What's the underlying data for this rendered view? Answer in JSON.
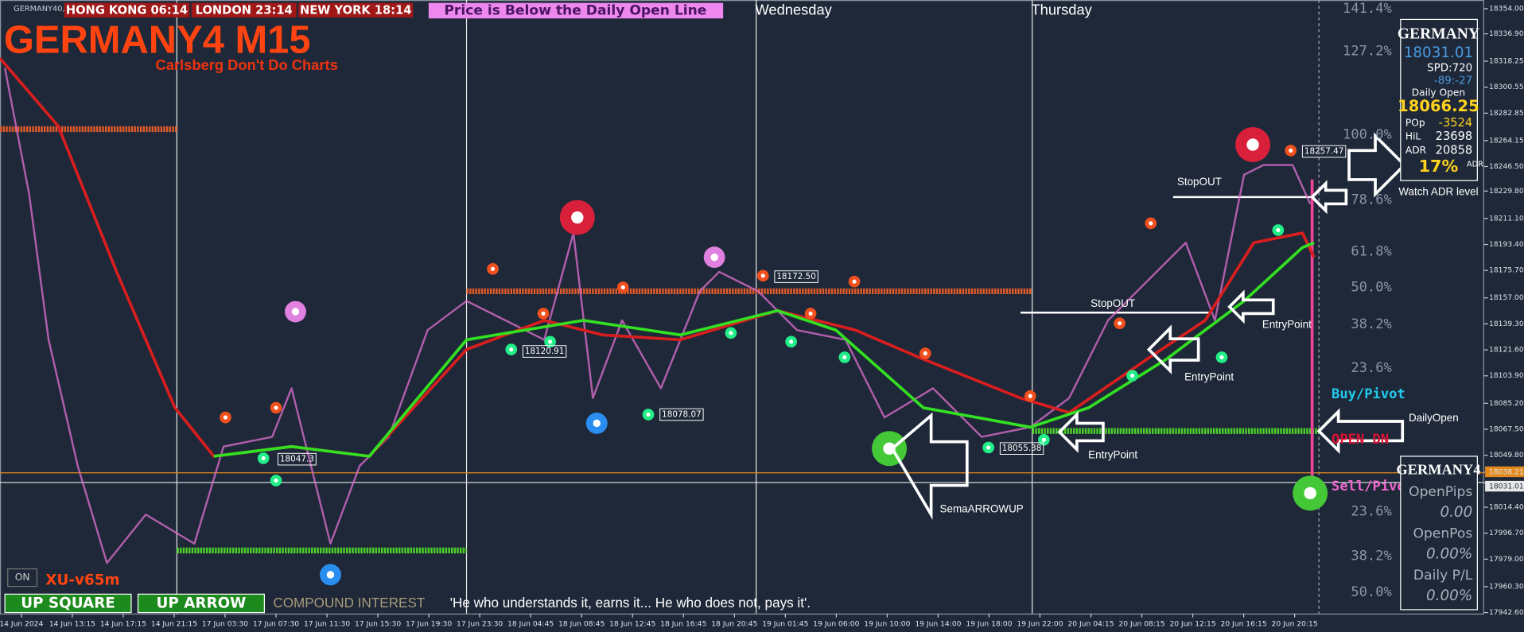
{
  "header": {
    "symbol": "GERMANY40,M15",
    "clocks": [
      "HONG KONG 06:14",
      "LONDON  23:14",
      "NEW YORK 18:14"
    ],
    "alert": "Price is Below the Daily Open Line",
    "days": [
      "Wednesday",
      "Thursday"
    ]
  },
  "title": "GERMANY4 M15",
  "subtitle": "Carlsberg Don't Do Charts",
  "levels": [
    "141.4%",
    "127.2%",
    "100.0%",
    "78.6%",
    "61.8%",
    "50.0%",
    "38.2%",
    "23.6%",
    "Buy/Pivot",
    "OPEN DN",
    "Sell/Pivo",
    "23.6%",
    "38.2%",
    "50.0%"
  ],
  "info_panel": {
    "symbol": "GERMANY",
    "price": "18031.01",
    "spread": "SPD:720",
    "swap": "-89:-27",
    "daily_open_label": "Daily Open",
    "daily_open": "18066.25",
    "rows": [
      [
        "POp",
        "-3524"
      ],
      [
        "HiL",
        "23698"
      ],
      [
        "ADR",
        "20858"
      ]
    ],
    "adr_percent": "17%",
    "adr_label": "ADR"
  },
  "stats_panel": {
    "symbol": "GERMANY4",
    "rows": [
      [
        "OpenPips",
        "0.00"
      ],
      [
        "OpenPos",
        "0.00%"
      ],
      [
        "Daily P/L",
        "0.00%"
      ]
    ]
  },
  "price_axis": [
    "18354.00",
    "18336.90",
    "18318.25",
    "18300.55",
    "18282.85",
    "18264.15",
    "18246.50",
    "18229.80",
    "18211.10",
    "18193.40",
    "18175.70",
    "18157.00",
    "18139.30",
    "18121.60",
    "18103.90",
    "18085.20",
    "18067.50",
    "18049.80",
    "18038.21",
    "18031.01",
    "18014.40",
    "17996.70",
    "17979.00",
    "17960.30",
    "17942.60"
  ],
  "time_axis": [
    "14 Jun 2024",
    "14 Jun 13:15",
    "14 Jun 17:15",
    "14 Jun 21:15",
    "17 Jun 03:30",
    "17 Jun 07:30",
    "17 Jun 11:30",
    "17 Jun 15:30",
    "17 Jun 19:30",
    "17 Jun 23:30",
    "18 Jun 04:45",
    "18 Jun 08:45",
    "18 Jun 12:45",
    "18 Jun 16:45",
    "18 Jun 20:45",
    "19 Jun 01:45",
    "19 Jun 06:00",
    "19 Jun 10:00",
    "19 Jun 14:00",
    "19 Jun 18:00",
    "19 Jun 22:00",
    "20 Jun 04:15",
    "20 Jun 08:15",
    "20 Jun 12:15",
    "20 Jun 16:15",
    "20 Jun 20:15"
  ],
  "annotations": [
    "StopOUT",
    "StopOUT",
    "EntryPoint",
    "EntryPoint",
    "EntryPoint",
    "Watch ADR level",
    "DailyOpen",
    "SemaARROWUP"
  ],
  "price_tags": [
    "18257.47",
    "18172.50",
    "18120.91",
    "18078.07",
    "18047.3",
    "18055.38"
  ],
  "footer": {
    "toggle": "ON",
    "version": "XU-v65m",
    "buttons": [
      "UP SQUARE",
      "UP ARROW"
    ],
    "heading": "COMPOUND INTEREST",
    "quote": "'He who understands it, earns it... He who does not, pays it'."
  }
}
